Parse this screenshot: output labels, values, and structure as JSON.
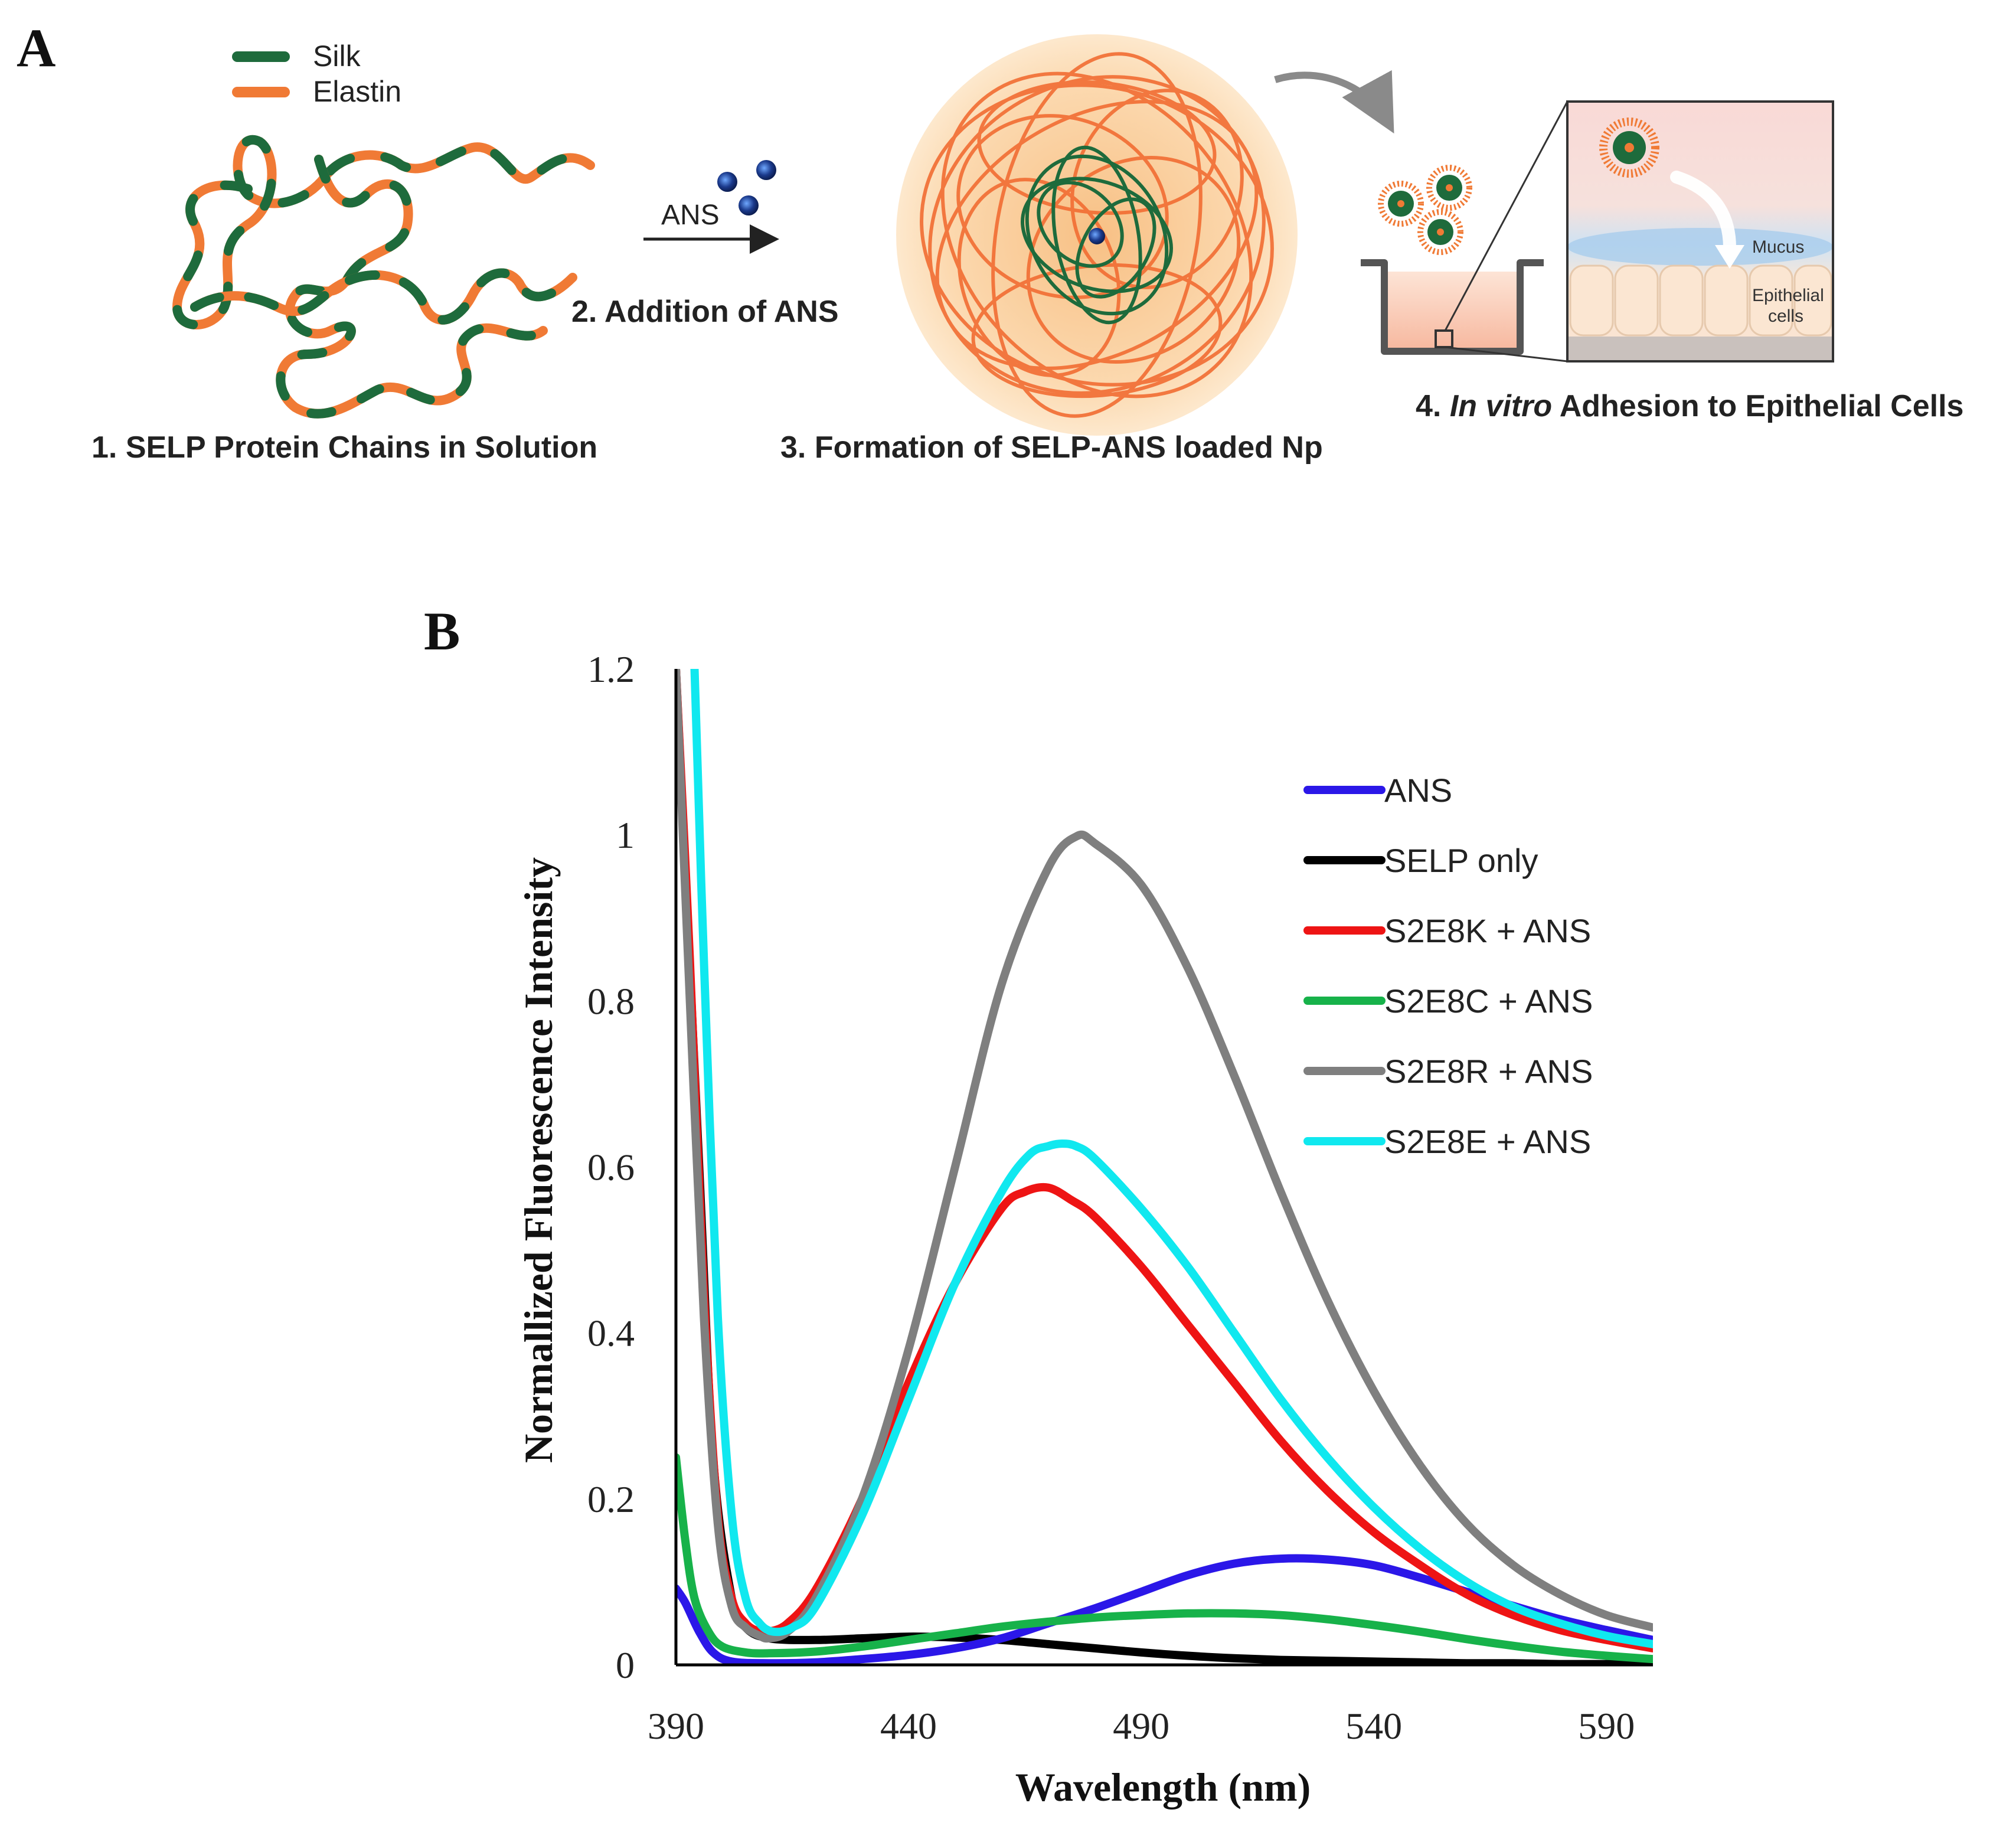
{
  "panel_a": {
    "label": "A",
    "legend": {
      "silk": "Silk",
      "elastin": "Elastin"
    },
    "arrow_label": "ANS",
    "steps": {
      "step1": "1. SELP Protein Chains in Solution",
      "step2": "2. Addition of ANS",
      "step3": "3. Formation of SELP-ANS loaded Np",
      "step4_prefix": "4. ",
      "step4_italic": "In vitro",
      "step4_suffix": " Adhesion to Epithelial Cells"
    },
    "inset": {
      "mucus": "Mucus",
      "epithelial": "Epithelial",
      "cells": "cells"
    },
    "colors": {
      "silk": "#1e6b3c",
      "elastin": "#f07a35",
      "ans_dot": "#1b3a8c"
    }
  },
  "panel_b": {
    "label": "B",
    "chart_data": {
      "type": "line",
      "xlabel": "Wavelength (nm)",
      "ylabel": "Normallized Fluorescence Intensity",
      "xlim": [
        390,
        600
      ],
      "ylim": [
        0,
        1.2
      ],
      "xticks": [
        "390",
        "440",
        "490",
        "540",
        "590"
      ],
      "yticks": [
        "0",
        "0.2",
        "0.4",
        "0.6",
        "0.8",
        "1",
        "1.2"
      ],
      "legend_position": "top-right",
      "grid": false,
      "series": [
        {
          "name": "ANS",
          "color": "#2b17e8",
          "x": [
            390,
            392,
            395,
            398,
            402,
            410,
            420,
            430,
            440,
            450,
            460,
            470,
            480,
            490,
            500,
            510,
            520,
            530,
            540,
            550,
            560,
            570,
            580,
            590,
            600
          ],
          "y": [
            0.092,
            0.075,
            0.04,
            0.015,
            0.004,
            0.002,
            0.003,
            0.007,
            0.012,
            0.02,
            0.032,
            0.05,
            0.068,
            0.088,
            0.108,
            0.122,
            0.128,
            0.127,
            0.12,
            0.105,
            0.088,
            0.071,
            0.055,
            0.042,
            0.03
          ]
        },
        {
          "name": "SELP only",
          "color": "#000000",
          "x": [
            390,
            395,
            398,
            402,
            405,
            410,
            420,
            430,
            440,
            450,
            460,
            470,
            480,
            490,
            500,
            510,
            520,
            530,
            540,
            550,
            560,
            570,
            580,
            590,
            600
          ],
          "y": [
            1.2,
            0.6,
            0.25,
            0.08,
            0.045,
            0.032,
            0.03,
            0.032,
            0.034,
            0.033,
            0.03,
            0.025,
            0.02,
            0.015,
            0.011,
            0.008,
            0.006,
            0.005,
            0.004,
            0.003,
            0.002,
            0.002,
            0.001,
            0.001,
            0.001
          ]
        },
        {
          "name": "S2E8K + ANS",
          "color": "#ee1414",
          "x": [
            390,
            393,
            396,
            399,
            402,
            405,
            408,
            410,
            414,
            420,
            430,
            440,
            450,
            460,
            465,
            470,
            475,
            480,
            490,
            500,
            510,
            520,
            530,
            540,
            550,
            560,
            570,
            580,
            590,
            600
          ],
          "y": [
            1.2,
            0.85,
            0.45,
            0.18,
            0.08,
            0.05,
            0.04,
            0.04,
            0.05,
            0.09,
            0.2,
            0.34,
            0.46,
            0.55,
            0.57,
            0.575,
            0.56,
            0.54,
            0.48,
            0.41,
            0.34,
            0.27,
            0.21,
            0.16,
            0.12,
            0.085,
            0.06,
            0.042,
            0.03,
            0.02
          ]
        },
        {
          "name": "S2E8C + ANS",
          "color": "#17b24a",
          "x": [
            390,
            392,
            394,
            397,
            400,
            405,
            410,
            420,
            430,
            440,
            450,
            460,
            470,
            480,
            490,
            500,
            510,
            520,
            530,
            540,
            550,
            560,
            570,
            580,
            590,
            600
          ],
          "y": [
            0.25,
            0.15,
            0.08,
            0.04,
            0.022,
            0.015,
            0.014,
            0.016,
            0.022,
            0.03,
            0.038,
            0.046,
            0.052,
            0.057,
            0.06,
            0.062,
            0.062,
            0.06,
            0.055,
            0.048,
            0.04,
            0.031,
            0.023,
            0.016,
            0.011,
            0.007
          ]
        },
        {
          "name": "S2E8R + ANS",
          "color": "#7f7f7f",
          "x": [
            390,
            393,
            396,
            399,
            402,
            405,
            408,
            410,
            414,
            420,
            430,
            440,
            450,
            460,
            470,
            476,
            480,
            490,
            500,
            510,
            520,
            530,
            540,
            550,
            560,
            570,
            580,
            590,
            600
          ],
          "y": [
            1.2,
            0.8,
            0.42,
            0.17,
            0.07,
            0.045,
            0.035,
            0.032,
            0.04,
            0.08,
            0.2,
            0.38,
            0.6,
            0.82,
            0.96,
            0.998,
            0.99,
            0.94,
            0.84,
            0.71,
            0.57,
            0.44,
            0.33,
            0.24,
            0.17,
            0.12,
            0.085,
            0.06,
            0.045
          ]
        },
        {
          "name": "S2E8E + ANS",
          "color": "#10e8ef",
          "x": [
            394,
            396,
            399,
            402,
            405,
            408,
            411,
            415,
            420,
            430,
            440,
            450,
            460,
            466,
            470,
            473,
            476,
            480,
            490,
            500,
            510,
            520,
            530,
            540,
            550,
            560,
            570,
            580,
            590,
            600
          ],
          "y": [
            1.2,
            0.85,
            0.42,
            0.18,
            0.08,
            0.05,
            0.04,
            0.045,
            0.07,
            0.18,
            0.32,
            0.46,
            0.57,
            0.615,
            0.625,
            0.628,
            0.625,
            0.61,
            0.55,
            0.48,
            0.4,
            0.32,
            0.25,
            0.19,
            0.14,
            0.1,
            0.07,
            0.05,
            0.035,
            0.025
          ]
        }
      ]
    }
  }
}
